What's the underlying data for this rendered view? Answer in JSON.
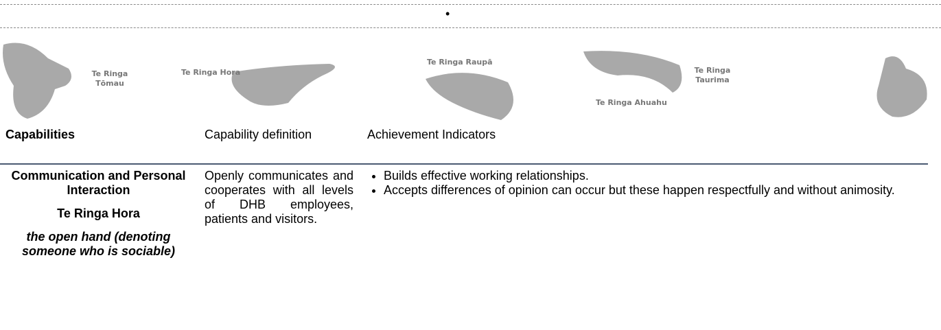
{
  "hands": [
    {
      "label": "Te Ringa Tōmau"
    },
    {
      "label": "Te Ringa Hora"
    },
    {
      "label": "Te Ringa Raupā"
    },
    {
      "label": "Te Ringa Ahuahu"
    },
    {
      "label": "Te Ringa Taurima"
    }
  ],
  "table": {
    "headers": [
      "Capabilities",
      "Capability definition",
      "Achievement Indicators"
    ],
    "rows": [
      {
        "title": "Communication and Personal Interaction",
        "maori": "Te Ringa Hora",
        "meaning": "the open hand (denoting someone who is sociable)",
        "definition": "Openly communicates and cooperates with all levels of DHB employees, patients and visitors.",
        "indicators": [
          "Builds effective working relationships.",
          "Accepts differences of opinion can occur but these happen respectfully and without animosity."
        ]
      }
    ]
  }
}
